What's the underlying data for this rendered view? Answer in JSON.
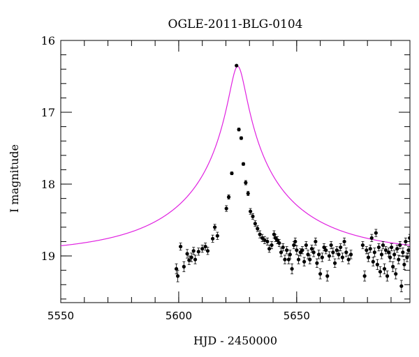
{
  "chart_data": {
    "type": "scatter",
    "title": "OGLE-2011-BLG-0104",
    "xlabel": "HJD - 2450000",
    "ylabel": "I magnitude",
    "xlim": [
      5550,
      5698
    ],
    "ylim": [
      16,
      19.65
    ],
    "y_inverted": true,
    "grid": false,
    "legend": "none",
    "x_ticks": [
      5550,
      5600,
      5650
    ],
    "y_ticks": [
      16,
      17,
      18,
      19
    ],
    "x_tick_labels": [
      "5550",
      "5600",
      "5650"
    ],
    "y_tick_labels": [
      "16",
      "17",
      "18",
      "19"
    ],
    "colors": {
      "points": "#000000",
      "model": "#e020e0"
    },
    "model": {
      "type": "microlensing",
      "t0": 5625.0,
      "baseline_mag": 18.97,
      "peak_mag": 16.36
    },
    "series": [
      {
        "points": [
          [
            5599.0,
            19.18,
            0.07
          ],
          [
            5599.6,
            19.28,
            0.08
          ],
          [
            5600.8,
            18.87,
            0.05
          ],
          [
            5602.2,
            19.15,
            0.07
          ],
          [
            5603.6,
            18.97,
            0.06
          ],
          [
            5604.4,
            19.06,
            0.06
          ],
          [
            5605.4,
            19.02,
            0.06
          ],
          [
            5606.3,
            18.93,
            0.05
          ],
          [
            5607.0,
            19.05,
            0.06
          ],
          [
            5608.4,
            18.94,
            0.05
          ],
          [
            5610.0,
            18.9,
            0.05
          ],
          [
            5611.3,
            18.87,
            0.05
          ],
          [
            5612.3,
            18.93,
            0.05
          ],
          [
            5614.4,
            18.76,
            0.05
          ],
          [
            5615.3,
            18.6,
            0.04
          ],
          [
            5616.4,
            18.72,
            0.05
          ],
          [
            5620.2,
            18.34,
            0.04
          ],
          [
            5621.2,
            18.18,
            0.03
          ],
          [
            5622.5,
            17.85,
            0.02
          ],
          [
            5624.5,
            16.35,
            0.01
          ],
          [
            5625.5,
            17.24,
            0.02
          ],
          [
            5626.5,
            17.36,
            0.02
          ],
          [
            5627.4,
            17.72,
            0.02
          ],
          [
            5628.4,
            17.98,
            0.03
          ],
          [
            5629.4,
            18.13,
            0.03
          ],
          [
            5630.4,
            18.38,
            0.04
          ],
          [
            5631.4,
            18.45,
            0.04
          ],
          [
            5632.4,
            18.55,
            0.04
          ],
          [
            5633.4,
            18.62,
            0.04
          ],
          [
            5634.4,
            18.7,
            0.05
          ],
          [
            5635.4,
            18.75,
            0.05
          ],
          [
            5636.4,
            18.78,
            0.05
          ],
          [
            5637.6,
            18.8,
            0.05
          ],
          [
            5638.4,
            18.9,
            0.05
          ],
          [
            5639.4,
            18.85,
            0.05
          ],
          [
            5640.4,
            18.7,
            0.05
          ],
          [
            5641.0,
            18.75,
            0.05
          ],
          [
            5641.8,
            18.78,
            0.05
          ],
          [
            5642.6,
            18.82,
            0.05
          ],
          [
            5643.4,
            18.95,
            0.06
          ],
          [
            5644.2,
            18.88,
            0.05
          ],
          [
            5645.0,
            19.05,
            0.06
          ],
          [
            5645.8,
            18.92,
            0.05
          ],
          [
            5646.6,
            19.05,
            0.06
          ],
          [
            5647.2,
            18.98,
            0.06
          ],
          [
            5648.0,
            19.18,
            0.07
          ],
          [
            5648.8,
            18.85,
            0.05
          ],
          [
            5649.4,
            18.8,
            0.05
          ],
          [
            5650.0,
            18.92,
            0.06
          ],
          [
            5650.8,
            19.05,
            0.06
          ],
          [
            5651.6,
            18.95,
            0.05
          ],
          [
            5652.4,
            18.92,
            0.05
          ],
          [
            5653.2,
            19.08,
            0.06
          ],
          [
            5654.0,
            18.85,
            0.05
          ],
          [
            5654.8,
            18.98,
            0.06
          ],
          [
            5655.6,
            19.05,
            0.06
          ],
          [
            5656.4,
            18.9,
            0.05
          ],
          [
            5657.2,
            18.95,
            0.06
          ],
          [
            5658.0,
            18.8,
            0.05
          ],
          [
            5658.6,
            19.1,
            0.06
          ],
          [
            5659.4,
            18.98,
            0.06
          ],
          [
            5660.0,
            19.25,
            0.07
          ],
          [
            5660.8,
            19.02,
            0.06
          ],
          [
            5661.6,
            18.88,
            0.05
          ],
          [
            5662.4,
            18.92,
            0.05
          ],
          [
            5663.0,
            19.28,
            0.07
          ],
          [
            5663.8,
            19.0,
            0.06
          ],
          [
            5664.6,
            18.85,
            0.05
          ],
          [
            5665.4,
            18.95,
            0.06
          ],
          [
            5666.2,
            19.1,
            0.06
          ],
          [
            5667.0,
            18.92,
            0.05
          ],
          [
            5667.8,
            18.98,
            0.06
          ],
          [
            5668.6,
            18.88,
            0.05
          ],
          [
            5669.4,
            19.02,
            0.06
          ],
          [
            5670.2,
            18.8,
            0.05
          ],
          [
            5671.0,
            18.95,
            0.06
          ],
          [
            5672.0,
            19.05,
            0.06
          ],
          [
            5673.0,
            18.98,
            0.06
          ],
          [
            5678.0,
            18.85,
            0.05
          ],
          [
            5678.8,
            19.28,
            0.07
          ],
          [
            5679.6,
            18.92,
            0.05
          ],
          [
            5680.4,
            19.02,
            0.06
          ],
          [
            5681.2,
            18.9,
            0.05
          ],
          [
            5681.8,
            18.75,
            0.05
          ],
          [
            5682.4,
            19.08,
            0.06
          ],
          [
            5683.0,
            18.95,
            0.06
          ],
          [
            5683.6,
            18.68,
            0.05
          ],
          [
            5684.2,
            19.12,
            0.07
          ],
          [
            5684.8,
            18.88,
            0.05
          ],
          [
            5685.4,
            19.22,
            0.07
          ],
          [
            5686.0,
            18.98,
            0.06
          ],
          [
            5686.6,
            18.85,
            0.05
          ],
          [
            5687.2,
            19.18,
            0.07
          ],
          [
            5687.8,
            18.92,
            0.05
          ],
          [
            5688.4,
            19.28,
            0.07
          ],
          [
            5689.0,
            18.95,
            0.06
          ],
          [
            5689.6,
            19.02,
            0.06
          ],
          [
            5690.2,
            18.88,
            0.05
          ],
          [
            5690.8,
            19.15,
            0.07
          ],
          [
            5691.4,
            18.98,
            0.06
          ],
          [
            5692.0,
            19.25,
            0.07
          ],
          [
            5692.6,
            18.9,
            0.05
          ],
          [
            5693.2,
            19.05,
            0.06
          ],
          [
            5693.8,
            18.85,
            0.05
          ],
          [
            5694.4,
            19.42,
            0.08
          ],
          [
            5695.0,
            18.95,
            0.06
          ],
          [
            5695.6,
            19.12,
            0.07
          ],
          [
            5696.2,
            18.8,
            0.05
          ],
          [
            5696.8,
            19.02,
            0.06
          ],
          [
            5697.4,
            18.92,
            0.05
          ],
          [
            5697.9,
            18.75,
            0.05
          ]
        ]
      }
    ]
  }
}
